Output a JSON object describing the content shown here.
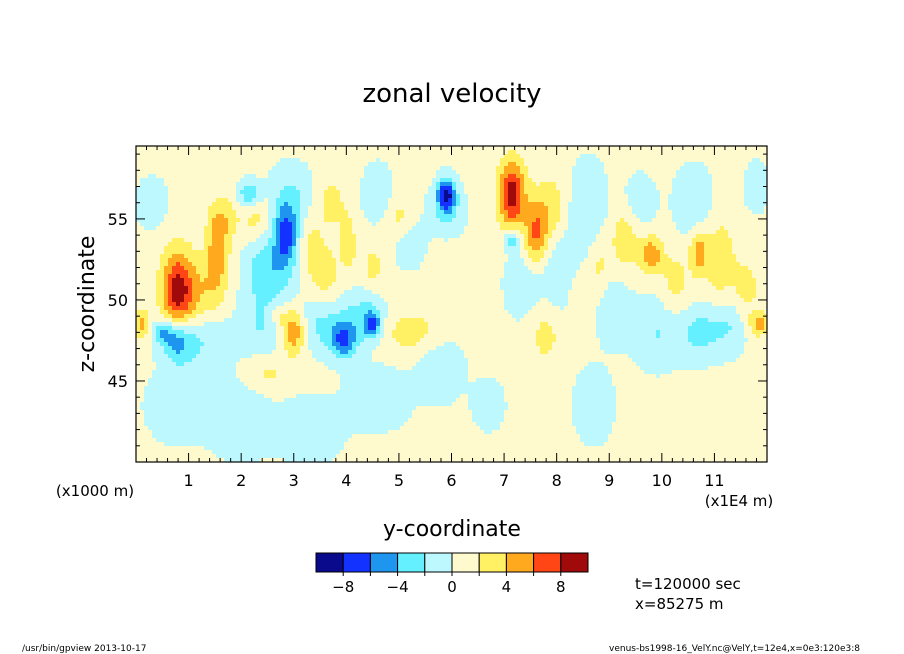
{
  "chart_data": {
    "type": "heatmap",
    "title": "zonal velocity",
    "xlabel": "y-coordinate",
    "ylabel": "z-coordinate",
    "x_unit_left": "(x1000 m)",
    "x_unit_right": "(x1E4 m)",
    "xlim": [
      0,
      12
    ],
    "ylim": [
      40,
      59.5
    ],
    "x_ticks": [
      1,
      2,
      3,
      4,
      5,
      6,
      7,
      8,
      9,
      10,
      11
    ],
    "x_tick_labels": [
      "1",
      "2",
      "3",
      "4",
      "5",
      "6",
      "7",
      "8",
      "9",
      "10",
      "11"
    ],
    "y_ticks": [
      45,
      50,
      55
    ],
    "y_tick_labels": [
      "45",
      "50",
      "55"
    ],
    "colorbar": {
      "levels": [
        -10,
        -8,
        -6,
        -4,
        -2,
        0,
        2,
        4,
        6,
        8,
        10
      ],
      "tick_values": [
        -8,
        -4,
        0,
        4,
        8
      ],
      "tick_labels": [
        "−8",
        "−4",
        "0",
        "4",
        "8"
      ],
      "colors": [
        "#0a0a8c",
        "#1432ff",
        "#1e96f0",
        "#64f0ff",
        "#bef8ff",
        "#fffacd",
        "#fff064",
        "#ffaa1e",
        "#ff4614",
        "#a00a0a"
      ]
    },
    "features": [
      {
        "y": 0.8,
        "z": 50.5,
        "value": 8.5,
        "sy": 0.22,
        "sz": 1.8
      },
      {
        "y": 0.8,
        "z": 47.5,
        "value": -6.5,
        "sy": 0.22,
        "sz": 1.0
      },
      {
        "y": 0.5,
        "z": 48.0,
        "value": -4.0,
        "sy": 0.15,
        "sz": 0.5
      },
      {
        "y": 1.55,
        "z": 53.0,
        "value": 4.5,
        "sy": 0.15,
        "sz": 1.8
      },
      {
        "y": 1.3,
        "z": 50.5,
        "value": 2.5,
        "sy": 0.25,
        "sz": 1.5
      },
      {
        "y": 1.4,
        "z": 47.5,
        "value": -2.5,
        "sy": 0.3,
        "sz": 1.2
      },
      {
        "y": 1.7,
        "z": 55.0,
        "value": 2.2,
        "sy": 0.2,
        "sz": 1.0
      },
      {
        "y": 2.15,
        "z": 56.5,
        "value": -4.5,
        "sy": 0.15,
        "sz": 0.6
      },
      {
        "y": 2.4,
        "z": 48.5,
        "value": -2.5,
        "sy": 0.3,
        "sz": 1.5
      },
      {
        "y": 2.4,
        "z": 52.0,
        "value": -2.3,
        "sy": 0.25,
        "sz": 1.5
      },
      {
        "y": 2.3,
        "z": 55.0,
        "value": 2.5,
        "sy": 0.2,
        "sz": 1.0
      },
      {
        "y": 2.85,
        "z": 54.0,
        "value": -6.0,
        "sy": 0.15,
        "sz": 1.2
      },
      {
        "y": 2.95,
        "z": 56.0,
        "value": -3.0,
        "sy": 0.3,
        "sz": 1.5
      },
      {
        "y": 2.7,
        "z": 52.0,
        "value": -2.5,
        "sy": 0.3,
        "sz": 1.5
      },
      {
        "y": 3.0,
        "z": 48.0,
        "value": 5.5,
        "sy": 0.15,
        "sz": 1.0
      },
      {
        "y": 2.7,
        "z": 49.0,
        "value": 2.3,
        "sy": 0.15,
        "sz": 0.6
      },
      {
        "y": 3.3,
        "z": 53.5,
        "value": 2.3,
        "sy": 0.15,
        "sz": 1.5
      },
      {
        "y": 3.6,
        "z": 51.5,
        "value": 2.5,
        "sy": 0.2,
        "sz": 1.5
      },
      {
        "y": 3.55,
        "z": 48.5,
        "value": -3.0,
        "sy": 0.3,
        "sz": 1.2
      },
      {
        "y": 3.7,
        "z": 56.0,
        "value": 2.3,
        "sy": 0.2,
        "sz": 1.2
      },
      {
        "y": 3.95,
        "z": 47.5,
        "value": -6.0,
        "sy": 0.18,
        "sz": 0.8
      },
      {
        "y": 4.3,
        "z": 49.0,
        "value": -3.0,
        "sy": 0.3,
        "sz": 1.2
      },
      {
        "y": 4.05,
        "z": 53.5,
        "value": 2.2,
        "sy": 0.12,
        "sz": 1.5
      },
      {
        "y": 4.5,
        "z": 48.5,
        "value": -6.0,
        "sy": 0.12,
        "sz": 0.6
      },
      {
        "y": 4.6,
        "z": 56.5,
        "value": -2.5,
        "sy": 0.2,
        "sz": 1.2
      },
      {
        "y": 4.5,
        "z": 52.0,
        "value": 2.2,
        "sy": 0.15,
        "sz": 1.0
      },
      {
        "y": 5.2,
        "z": 53.5,
        "value": -2.3,
        "sy": 0.2,
        "sz": 1.0
      },
      {
        "y": 5.3,
        "z": 48.0,
        "value": 2.5,
        "sy": 0.5,
        "sz": 1.0
      },
      {
        "y": 5.0,
        "z": 55.0,
        "value": 2.2,
        "sy": 0.2,
        "sz": 1.0
      },
      {
        "y": 5.9,
        "z": 56.5,
        "value": -8.5,
        "sy": 0.12,
        "sz": 0.7
      },
      {
        "y": 5.9,
        "z": 55.5,
        "value": -2.5,
        "sy": 0.25,
        "sz": 1.0
      },
      {
        "y": 5.8,
        "z": 46.0,
        "value": -2.3,
        "sy": 0.3,
        "sz": 1.5
      },
      {
        "y": 7.15,
        "z": 56.5,
        "value": 8.5,
        "sy": 0.18,
        "sz": 1.5
      },
      {
        "y": 7.15,
        "z": 53.7,
        "value": -4.5,
        "sy": 0.1,
        "sz": 0.5
      },
      {
        "y": 7.6,
        "z": 54.0,
        "value": 5.5,
        "sy": 0.15,
        "sz": 1.5
      },
      {
        "y": 7.9,
        "z": 55.5,
        "value": 3.0,
        "sy": 0.2,
        "sz": 1.5
      },
      {
        "y": 7.4,
        "z": 51.0,
        "value": -2.5,
        "sy": 0.25,
        "sz": 1.5
      },
      {
        "y": 7.8,
        "z": 48.0,
        "value": 2.3,
        "sy": 0.25,
        "sz": 1.5
      },
      {
        "y": 8.1,
        "z": 51.5,
        "value": -2.5,
        "sy": 0.25,
        "sz": 2.0
      },
      {
        "y": 8.6,
        "z": 55.5,
        "value": -2.5,
        "sy": 0.25,
        "sz": 2.0
      },
      {
        "y": 8.4,
        "z": 50.0,
        "value": 2.3,
        "sy": 0.15,
        "sz": 1.5
      },
      {
        "y": 8.8,
        "z": 52.0,
        "value": 2.3,
        "sy": 0.15,
        "sz": 1.5
      },
      {
        "y": 9.3,
        "z": 54.0,
        "value": 3.0,
        "sy": 0.2,
        "sz": 1.8
      },
      {
        "y": 9.1,
        "z": 49.5,
        "value": -2.5,
        "sy": 0.25,
        "sz": 1.5
      },
      {
        "y": 9.5,
        "z": 56.0,
        "value": -2.3,
        "sy": 0.25,
        "sz": 1.2
      },
      {
        "y": 9.8,
        "z": 52.8,
        "value": 5.0,
        "sy": 0.15,
        "sz": 0.8
      },
      {
        "y": 9.9,
        "z": 48.0,
        "value": -2.5,
        "sy": 0.3,
        "sz": 1.5
      },
      {
        "y": 10.25,
        "z": 51.0,
        "value": 2.3,
        "sy": 0.2,
        "sz": 1.5
      },
      {
        "y": 10.6,
        "z": 56.0,
        "value": -2.3,
        "sy": 0.25,
        "sz": 1.5
      },
      {
        "y": 10.7,
        "z": 53.0,
        "value": 4.5,
        "sy": 0.12,
        "sz": 1.0
      },
      {
        "y": 10.7,
        "z": 48.0,
        "value": -3.0,
        "sy": 0.3,
        "sz": 1.2
      },
      {
        "y": 11.1,
        "z": 52.5,
        "value": 3.0,
        "sy": 0.2,
        "sz": 1.8
      },
      {
        "y": 11.3,
        "z": 48.5,
        "value": -2.5,
        "sy": 0.25,
        "sz": 1.2
      },
      {
        "y": 11.6,
        "z": 50.5,
        "value": 2.3,
        "sy": 0.2,
        "sz": 1.5
      },
      {
        "y": 11.85,
        "z": 48.5,
        "value": 4.5,
        "sy": 0.12,
        "sz": 0.5
      },
      {
        "y": 11.8,
        "z": 57.0,
        "value": -2.3,
        "sy": 0.15,
        "sz": 1.0
      },
      {
        "y": 0.1,
        "z": 48.5,
        "value": 4.0,
        "sy": 0.12,
        "sz": 0.7
      },
      {
        "y": 0.3,
        "z": 56.0,
        "value": -2.2,
        "sy": 0.2,
        "sz": 1.0
      },
      {
        "y": 0.8,
        "z": 43.5,
        "value": -2.2,
        "sy": 0.4,
        "sz": 1.5
      },
      {
        "y": 2.0,
        "z": 42.5,
        "value": -2.4,
        "sy": 0.4,
        "sz": 1.5
      },
      {
        "y": 3.3,
        "z": 42.0,
        "value": -2.3,
        "sy": 0.4,
        "sz": 1.3
      },
      {
        "y": 4.6,
        "z": 44.0,
        "value": -2.3,
        "sy": 0.4,
        "sz": 1.3
      },
      {
        "y": 2.5,
        "z": 45.5,
        "value": 2.2,
        "sy": 0.25,
        "sz": 0.8
      },
      {
        "y": 8.7,
        "z": 43.5,
        "value": -2.2,
        "sy": 0.25,
        "sz": 1.5
      },
      {
        "y": 6.7,
        "z": 43.5,
        "value": -2.1,
        "sy": 0.2,
        "sz": 1.0
      }
    ]
  },
  "info": {
    "time": "t=120000 sec",
    "position": "x=85275 m"
  },
  "footer": {
    "left": "/usr/bin/gpview  2013-10-17",
    "right": "venus-bs1998-16_VelY.nc@VelY,t=12e4,x=0e3:120e3:8"
  }
}
